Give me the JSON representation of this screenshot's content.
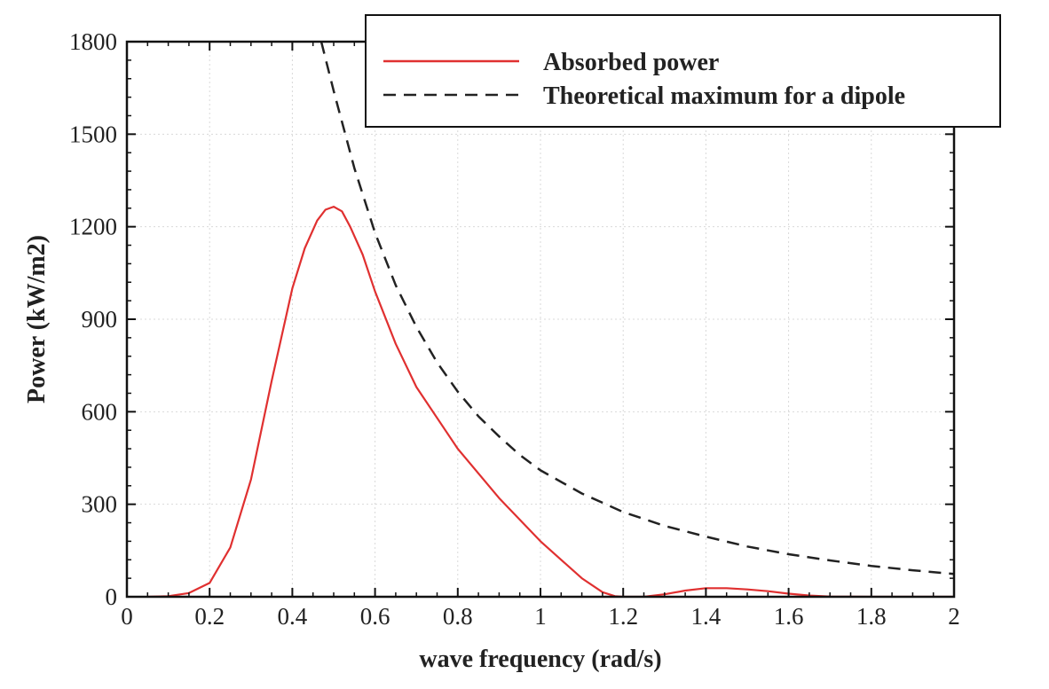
{
  "chart_data": {
    "type": "line",
    "xlabel": "wave frequency (rad/s)",
    "ylabel": "Power (kW/m2)",
    "xlim": [
      0,
      2
    ],
    "ylim": [
      0,
      1800
    ],
    "xticks": [
      0,
      0.2,
      0.4,
      0.6,
      0.8,
      1,
      1.2,
      1.4,
      1.6,
      1.8,
      2
    ],
    "xtick_labels": [
      "0",
      "0.2",
      "0.4",
      "0.6",
      "0.8",
      "1",
      "1.2",
      "1.4",
      "1.6",
      "1.8",
      "2"
    ],
    "yticks": [
      0,
      300,
      600,
      900,
      1200,
      1500,
      1800
    ],
    "ytick_labels": [
      "0",
      "300",
      "600",
      "900",
      "1200",
      "1500",
      "1800"
    ],
    "grid": true,
    "legend_position": "top-right",
    "series": [
      {
        "name": "Absorbed power",
        "color": "#e03030",
        "dash": "solid",
        "x": [
          0.05,
          0.1,
          0.15,
          0.2,
          0.25,
          0.3,
          0.35,
          0.4,
          0.43,
          0.46,
          0.48,
          0.5,
          0.52,
          0.54,
          0.57,
          0.6,
          0.65,
          0.7,
          0.8,
          0.9,
          1.0,
          1.05,
          1.1,
          1.15,
          1.18,
          1.2,
          1.25,
          1.3,
          1.35,
          1.4,
          1.45,
          1.5,
          1.55,
          1.6,
          1.65,
          1.7,
          1.8,
          1.9,
          2.0
        ],
        "y": [
          0,
          2,
          12,
          45,
          160,
          380,
          700,
          1000,
          1130,
          1220,
          1255,
          1265,
          1250,
          1200,
          1110,
          990,
          820,
          680,
          480,
          320,
          180,
          120,
          60,
          15,
          2,
          0,
          0,
          8,
          20,
          28,
          28,
          24,
          18,
          10,
          4,
          1,
          0,
          0,
          0
        ]
      },
      {
        "name": "Theoretical maximum for a dipole",
        "color": "#222222",
        "dash": "dashed",
        "x": [
          0.47,
          0.5,
          0.55,
          0.6,
          0.65,
          0.7,
          0.75,
          0.8,
          0.85,
          0.9,
          0.95,
          1.0,
          1.1,
          1.2,
          1.3,
          1.4,
          1.5,
          1.6,
          1.7,
          1.8,
          1.9,
          2.0
        ],
        "y": [
          1800,
          1640,
          1390,
          1180,
          1010,
          875,
          760,
          665,
          585,
          520,
          460,
          410,
          335,
          275,
          230,
          195,
          163,
          138,
          118,
          100,
          86,
          74
        ]
      }
    ]
  }
}
